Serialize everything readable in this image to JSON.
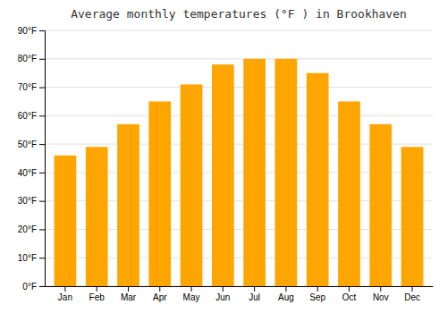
{
  "chart_data": {
    "type": "bar",
    "title": "Average monthly temperatures (°F ) in Brookhaven",
    "categories": [
      "Jan",
      "Feb",
      "Mar",
      "Apr",
      "May",
      "Jun",
      "Jul",
      "Aug",
      "Sep",
      "Oct",
      "Nov",
      "Dec"
    ],
    "values": [
      46,
      49,
      57,
      65,
      71,
      78,
      80,
      80,
      75,
      65,
      57,
      49
    ],
    "color": "#FFA500",
    "ylim": [
      0,
      90
    ],
    "yticks": [
      {
        "value": 0,
        "label": "0°F"
      },
      {
        "value": 10,
        "label": "10°F"
      },
      {
        "value": 20,
        "label": "20°F"
      },
      {
        "value": 30,
        "label": "30°F"
      },
      {
        "value": 40,
        "label": "40°F"
      },
      {
        "value": 50,
        "label": "50°F"
      },
      {
        "value": 60,
        "label": "60°F"
      },
      {
        "value": 70,
        "label": "70°F"
      },
      {
        "value": 80,
        "label": "80°F"
      },
      {
        "value": 90,
        "label": "90°F"
      }
    ],
    "grid": true
  }
}
